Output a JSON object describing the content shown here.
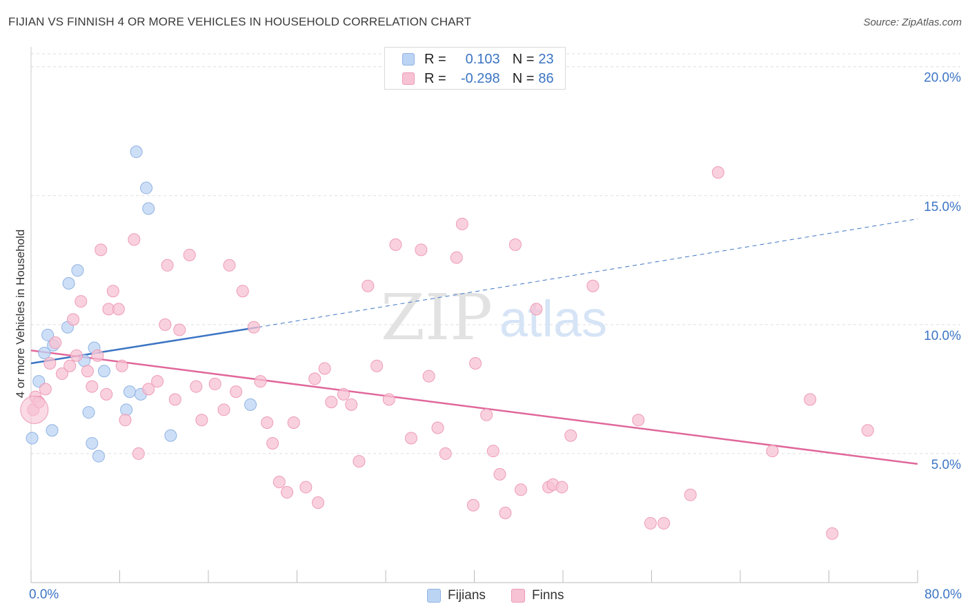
{
  "header": {
    "title": "FIJIAN VS FINNISH 4 OR MORE VEHICLES IN HOUSEHOLD CORRELATION CHART",
    "source_label": "Source: ZipAtlas.com"
  },
  "watermark": {
    "zip": "ZIP",
    "atlas": "atlas"
  },
  "colors": {
    "fijians_fill": "#bcd4f4",
    "fijians_stroke": "#8fb2e2",
    "fijians_line": "#3b74c4",
    "finns_fill": "#f7c2d3",
    "finns_stroke": "#ee9ab5",
    "finns_line": "#e0679a",
    "axis_label": "#3b74c4",
    "grid": "#dddddd"
  },
  "legend_top": {
    "rows": [
      {
        "series": "fijians",
        "r_label": "R =",
        "r_value": "0.103",
        "n_label": "N =",
        "n_value": "23"
      },
      {
        "series": "finns",
        "r_label": "R =",
        "r_value": "-0.298",
        "n_label": "N =",
        "n_value": "86"
      }
    ]
  },
  "legend_bottom": {
    "fijians": "Fijians",
    "finns": "Finns"
  },
  "chart_data": {
    "type": "scatter",
    "title": "FIJIAN VS FINNISH 4 OR MORE VEHICLES IN HOUSEHOLD CORRELATION CHART",
    "xlabel": "",
    "ylabel": "4 or more Vehicles in Household",
    "xlim": [
      0,
      80
    ],
    "ylim": [
      0,
      20.5
    ],
    "x_tick_labels": [
      "0.0%",
      "80.0%"
    ],
    "y_ticks": [
      5,
      10,
      15,
      20
    ],
    "y_tick_labels": [
      "5.0%",
      "10.0%",
      "15.0%",
      "20.0%"
    ],
    "grid": true,
    "legend_position": "bottom",
    "series": [
      {
        "name": "Fijians",
        "x": [
          0.1,
          0.7,
          1.2,
          1.5,
          1.9,
          2.0,
          3.3,
          3.4,
          4.2,
          4.8,
          5.2,
          5.5,
          5.7,
          6.1,
          6.6,
          8.6,
          8.9,
          9.5,
          9.9,
          10.4,
          10.6,
          12.6,
          19.8
        ],
        "y": [
          5.6,
          7.8,
          8.9,
          9.6,
          5.9,
          9.2,
          9.9,
          11.6,
          12.1,
          8.6,
          6.6,
          5.4,
          9.1,
          4.9,
          8.2,
          6.7,
          7.4,
          16.7,
          7.3,
          15.3,
          14.5,
          5.7,
          6.9
        ]
      },
      {
        "name": "Finns",
        "x": [
          0.2,
          0.4,
          0.7,
          1.3,
          1.7,
          2.2,
          2.8,
          3.5,
          3.8,
          4.1,
          4.5,
          5.1,
          5.5,
          6.0,
          6.3,
          6.8,
          7.0,
          7.4,
          7.9,
          8.2,
          8.5,
          9.3,
          9.7,
          10.6,
          11.4,
          12.1,
          12.3,
          13.0,
          13.4,
          14.3,
          14.9,
          15.4,
          16.6,
          17.4,
          17.9,
          18.5,
          19.1,
          20.1,
          20.7,
          21.3,
          21.8,
          22.4,
          23.1,
          23.7,
          24.8,
          25.6,
          25.9,
          26.5,
          27.1,
          28.2,
          28.9,
          29.6,
          30.4,
          31.2,
          32.3,
          32.9,
          34.3,
          35.2,
          35.9,
          36.7,
          37.4,
          38.4,
          38.9,
          39.9,
          40.1,
          41.1,
          41.7,
          42.3,
          42.8,
          43.7,
          44.2,
          45.6,
          46.7,
          47.1,
          47.9,
          48.7,
          50.7,
          54.8,
          55.9,
          57.1,
          59.5,
          62.0,
          66.9,
          70.3,
          72.3,
          75.5
        ],
        "y": [
          6.7,
          7.2,
          7.0,
          7.5,
          8.5,
          9.3,
          8.1,
          8.4,
          10.2,
          8.8,
          10.9,
          8.2,
          7.6,
          8.8,
          12.9,
          7.3,
          10.6,
          11.3,
          10.6,
          8.4,
          6.3,
          13.3,
          5.0,
          7.5,
          7.8,
          10.0,
          12.3,
          7.1,
          9.8,
          12.7,
          7.6,
          6.3,
          7.7,
          6.7,
          12.3,
          7.4,
          11.3,
          9.9,
          7.8,
          6.2,
          5.4,
          3.9,
          3.5,
          6.2,
          3.7,
          7.9,
          3.1,
          8.3,
          7.0,
          7.3,
          6.9,
          4.7,
          11.5,
          8.4,
          7.1,
          13.1,
          5.6,
          12.9,
          8.0,
          6.0,
          5.0,
          12.6,
          13.9,
          3.0,
          8.5,
          6.5,
          5.1,
          4.2,
          2.7,
          13.1,
          3.6,
          10.6,
          3.7,
          3.8,
          3.7,
          5.7,
          11.5,
          6.3,
          2.3,
          2.3,
          3.4,
          15.9,
          5.1,
          7.1,
          1.9,
          5.9
        ]
      }
    ],
    "trendlines": [
      {
        "series": "Fijians",
        "style": "solid",
        "x": [
          0,
          20.5
        ],
        "y": [
          8.5,
          9.9
        ]
      },
      {
        "series": "Fijians",
        "style": "dashed",
        "x": [
          20.5,
          80
        ],
        "y": [
          9.9,
          14.1
        ]
      },
      {
        "series": "Finns",
        "style": "solid",
        "x": [
          0,
          80
        ],
        "y": [
          9.0,
          4.6
        ]
      }
    ]
  }
}
